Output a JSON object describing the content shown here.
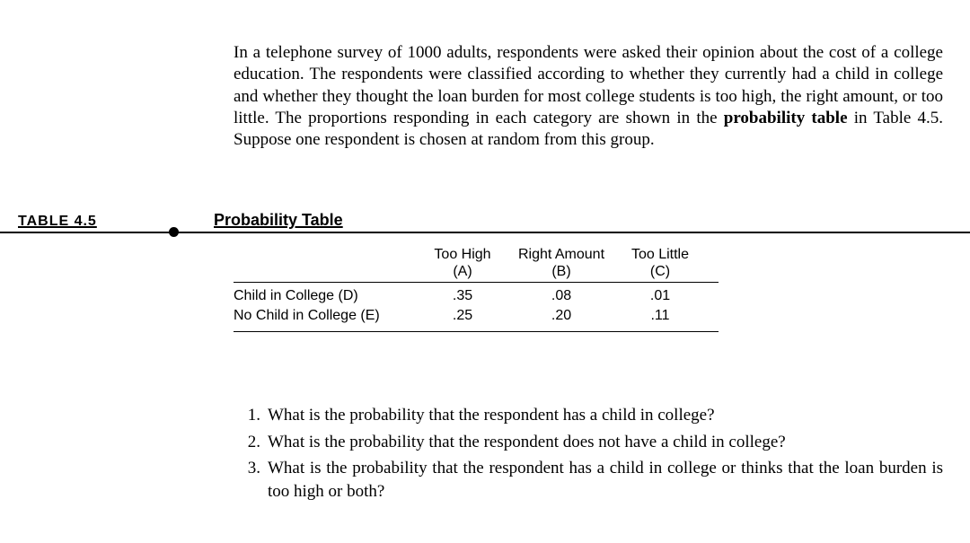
{
  "intro_text": "In a telephone survey of 1000 adults, respondents were asked their opinion about the cost of a college education. The respondents were classified according to whether they currently had a child in college and whether they thought the loan burden for most college students is too high, the right amount, or too little. The proportions responding in each category are shown in the ",
  "intro_bold": "probability table",
  "intro_tail": " in Table 4.5. Suppose one respondent is chosen at random from this group.",
  "table_label": "TABLE 4.5",
  "table_title": "Probability Table",
  "columns": [
    {
      "top": "Too High",
      "sub": "(A)"
    },
    {
      "top": "Right Amount",
      "sub": "(B)"
    },
    {
      "top": "Too Little",
      "sub": "(C)"
    }
  ],
  "rows": [
    {
      "label": "Child in College (D)",
      "values": [
        ".35",
        ".08",
        ".01"
      ]
    },
    {
      "label": "No Child in College (E)",
      "values": [
        ".25",
        ".20",
        ".11"
      ]
    }
  ],
  "questions": [
    {
      "num": "1.",
      "text": "What is the probability that the respondent has a child in college?"
    },
    {
      "num": "2.",
      "text": "What is the probability that the respondent does not have a child in college?"
    },
    {
      "num": "3.",
      "text": "What is the probability that the respondent has a child in college or thinks that the loan burden is too high or both?"
    }
  ]
}
